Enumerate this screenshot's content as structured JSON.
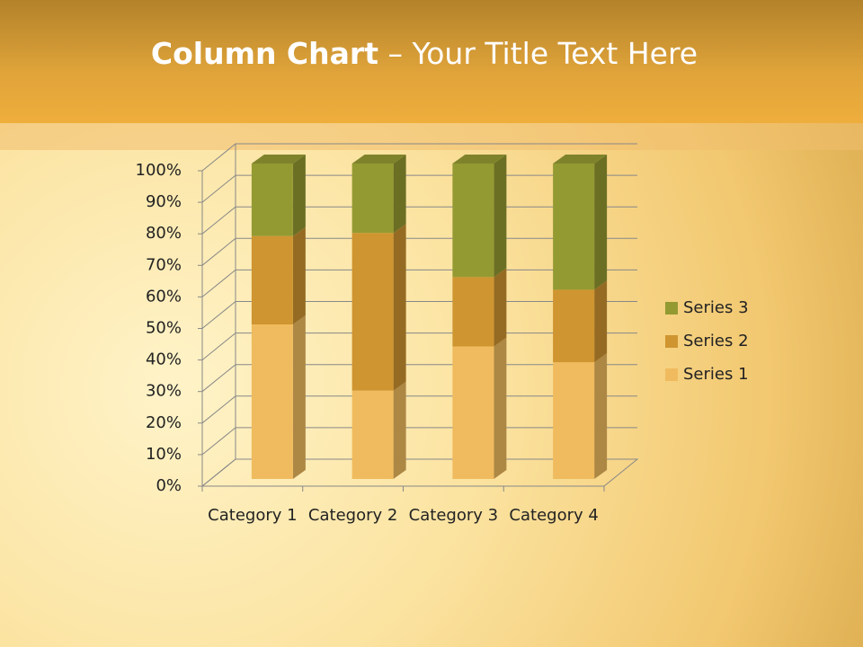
{
  "chart_data": {
    "type": "stacked_bar_3d",
    "title_bold": "Column Chart",
    "title": "– Your Title Text Here",
    "categories": [
      "Category 1",
      "Category 2",
      "Category 3",
      "Category 4"
    ],
    "series": [
      {
        "name": "Series 1",
        "color": "#f0bb5e",
        "values": [
          49,
          28,
          42,
          37
        ]
      },
      {
        "name": "Series 2",
        "color": "#cf9530",
        "values": [
          28,
          50,
          22,
          23
        ]
      },
      {
        "name": "Series 3",
        "color": "#949a32",
        "values": [
          23,
          22,
          36,
          40
        ]
      }
    ],
    "ylim": [
      0,
      100
    ],
    "yticks": [
      {
        "value": 0,
        "label": "0%"
      },
      {
        "value": 10,
        "label": "10%"
      },
      {
        "value": 20,
        "label": "20%"
      },
      {
        "value": 30,
        "label": "30%"
      },
      {
        "value": 40,
        "label": "40%"
      },
      {
        "value": 50,
        "label": "50%"
      },
      {
        "value": 60,
        "label": "60%"
      },
      {
        "value": 70,
        "label": "70%"
      },
      {
        "value": 80,
        "label": "80%"
      },
      {
        "value": 90,
        "label": "90%"
      },
      {
        "value": 100,
        "label": "100%"
      }
    ],
    "grid": true,
    "legend": "right"
  }
}
